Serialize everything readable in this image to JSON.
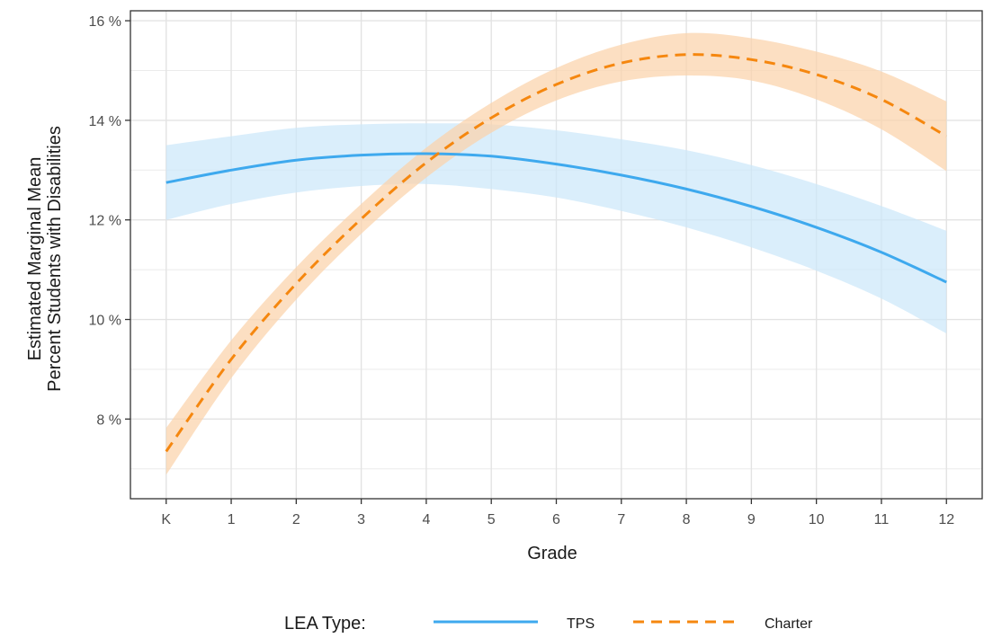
{
  "chart_data": {
    "type": "line",
    "xlabel": "Grade",
    "ylabel_lines": [
      "Estimated Marginal Mean",
      "Percent Students with Disabilities"
    ],
    "x_tick_labels": [
      "K",
      "1",
      "2",
      "3",
      "4",
      "5",
      "6",
      "7",
      "8",
      "9",
      "10",
      "11",
      "12"
    ],
    "x": [
      0,
      1,
      2,
      3,
      4,
      5,
      6,
      7,
      8,
      9,
      10,
      11,
      12
    ],
    "y_ticks": [
      8,
      10,
      12,
      14,
      16
    ],
    "y_tick_labels": [
      "8 %",
      "10 %",
      "12 %",
      "14 %",
      "16 %"
    ],
    "xlim": [
      -0.55,
      12.55
    ],
    "ylim": [
      6.4,
      16.2
    ],
    "grid": true,
    "legend": {
      "title": "LEA Type:",
      "position": "bottom",
      "entries": [
        "TPS",
        "Charter"
      ]
    },
    "series": [
      {
        "name": "TPS",
        "color": "#3ea9ee",
        "band_color": "#cce8fa",
        "dash": "solid",
        "values": [
          12.75,
          13.0,
          13.2,
          13.3,
          13.33,
          13.28,
          13.12,
          12.9,
          12.62,
          12.27,
          11.85,
          11.35,
          10.75
        ],
        "lower": [
          12.0,
          12.32,
          12.55,
          12.68,
          12.72,
          12.62,
          12.45,
          12.18,
          11.85,
          11.45,
          10.98,
          10.42,
          9.72
        ],
        "upper": [
          13.5,
          13.68,
          13.85,
          13.92,
          13.94,
          13.92,
          13.8,
          13.62,
          13.4,
          13.1,
          12.72,
          12.28,
          11.78
        ]
      },
      {
        "name": "Charter",
        "color": "#f5870f",
        "band_color": "#fbd3aa",
        "dash": "dashed",
        "values": [
          7.35,
          9.2,
          10.72,
          12.02,
          13.15,
          14.05,
          14.72,
          15.15,
          15.32,
          15.22,
          14.92,
          14.42,
          13.68
        ],
        "lower": [
          6.88,
          8.82,
          10.4,
          11.72,
          12.85,
          13.75,
          14.4,
          14.78,
          14.9,
          14.8,
          14.42,
          13.82,
          12.98
        ],
        "upper": [
          7.82,
          9.58,
          11.05,
          12.32,
          13.45,
          14.35,
          15.05,
          15.52,
          15.75,
          15.65,
          15.38,
          14.98,
          14.38
        ]
      }
    ]
  }
}
